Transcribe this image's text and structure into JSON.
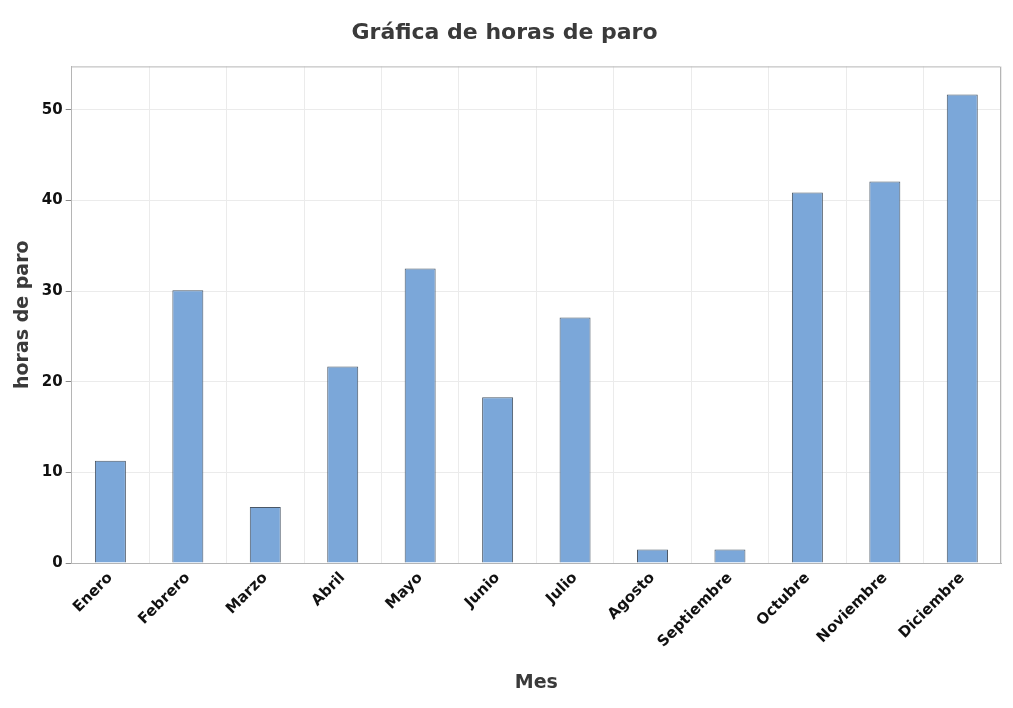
{
  "chart_data": {
    "type": "bar",
    "title": "Gráfica de horas de paro",
    "xlabel": "Mes",
    "ylabel": "horas de paro",
    "categories": [
      "Enero",
      "Febrero",
      "Marzo",
      "Abril",
      "Mayo",
      "Junio",
      "Julio",
      "Agosto",
      "Septiembre",
      "Octubre",
      "Noviembre",
      "Diciembre"
    ],
    "values": [
      11.3,
      30.1,
      6.2,
      21.7,
      32.5,
      18.3,
      27.1,
      1.5,
      1.5,
      40.9,
      42.1,
      51.7
    ],
    "color": "#7ba7d9",
    "ylim": [
      0,
      54.8
    ],
    "yticks": [
      0,
      10,
      20,
      30,
      40,
      50
    ],
    "grid": true,
    "legend": false
  }
}
